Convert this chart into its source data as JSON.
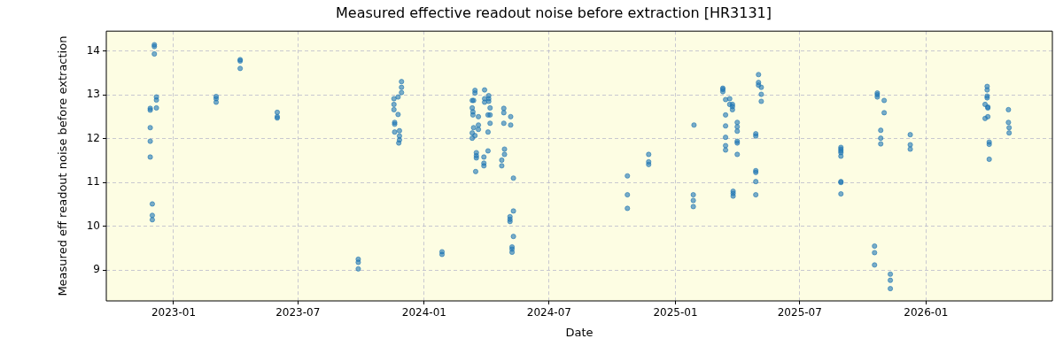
{
  "chart_data": {
    "type": "scatter",
    "title": "Measured effective readout noise before extraction [HR3131]",
    "xlabel": "Date",
    "ylabel": "Measured eff readout noise before extraction",
    "series": [
      {
        "color": "#1f77b4",
        "x": [
          "2022-11-28",
          "2022-11-28",
          "2022-11-28",
          "2022-11-28",
          "2022-11-28",
          "2022-12-01",
          "2022-12-01",
          "2022-12-01",
          "2022-12-04",
          "2022-12-04",
          "2022-12-04",
          "2022-12-07",
          "2022-12-07",
          "2022-12-07",
          "2023-03-04",
          "2023-03-04",
          "2023-03-04",
          "2023-04-08",
          "2023-04-08",
          "2023-04-08",
          "2023-06-01",
          "2023-06-01",
          "2023-06-01",
          "2023-09-27",
          "2023-09-27",
          "2023-09-27",
          "2023-11-18",
          "2023-11-18",
          "2023-11-18",
          "2023-11-19",
          "2023-11-19",
          "2023-11-19",
          "2023-11-24",
          "2023-11-24",
          "2023-11-26",
          "2023-11-26",
          "2023-11-26",
          "2023-11-25",
          "2023-11-29",
          "2023-11-29",
          "2023-11-29",
          "2024-01-27",
          "2024-01-27",
          "2024-03-11",
          "2024-03-11",
          "2024-03-11",
          "2024-03-11",
          "2024-03-12",
          "2024-03-12",
          "2024-03-13",
          "2024-03-13",
          "2024-03-15",
          "2024-03-15",
          "2024-03-15",
          "2024-03-17",
          "2024-03-17",
          "2024-03-17",
          "2024-03-16",
          "2024-03-20",
          "2024-03-20",
          "2024-03-20",
          "2024-03-28",
          "2024-03-28",
          "2024-03-28",
          "2024-03-29",
          "2024-03-29",
          "2024-03-29",
          "2024-04-03",
          "2024-04-03",
          "2024-04-03",
          "2024-04-04",
          "2024-04-04",
          "2024-04-04",
          "2024-04-06",
          "2024-04-06",
          "2024-04-06",
          "2024-04-26",
          "2024-04-26",
          "2024-04-26",
          "2024-04-27",
          "2024-04-27",
          "2024-04-23",
          "2024-04-23",
          "2024-05-05",
          "2024-05-05",
          "2024-05-05",
          "2024-05-06",
          "2024-05-06",
          "2024-05-08",
          "2024-05-08",
          "2024-05-08",
          "2024-05-10",
          "2024-05-10",
          "2024-05-10",
          "2024-10-23",
          "2024-10-23",
          "2024-10-23",
          "2024-11-23",
          "2024-11-23",
          "2024-11-23",
          "2025-01-27",
          "2025-01-27",
          "2025-01-27",
          "2025-01-28",
          "2025-03-11",
          "2025-03-11",
          "2025-03-11",
          "2025-03-15",
          "2025-03-15",
          "2025-03-15",
          "2025-03-15",
          "2025-03-15",
          "2025-03-15",
          "2025-03-21",
          "2025-03-21",
          "2025-03-25",
          "2025-03-25",
          "2025-03-25",
          "2025-03-26",
          "2025-03-26",
          "2025-03-26",
          "2025-04-01",
          "2025-04-01",
          "2025-04-01",
          "2025-04-01",
          "2025-04-01",
          "2025-04-01",
          "2025-04-28",
          "2025-04-28",
          "2025-04-28",
          "2025-04-28",
          "2025-04-28",
          "2025-04-28",
          "2025-05-02",
          "2025-05-02",
          "2025-05-02",
          "2025-05-06",
          "2025-05-06",
          "2025-05-06",
          "2025-08-30",
          "2025-08-30",
          "2025-08-30",
          "2025-08-30",
          "2025-08-30",
          "2025-08-30",
          "2025-08-30",
          "2025-08-30",
          "2025-10-18",
          "2025-10-18",
          "2025-10-18",
          "2025-10-22",
          "2025-10-22",
          "2025-10-22",
          "2025-10-27",
          "2025-10-27",
          "2025-10-27",
          "2025-11-01",
          "2025-11-01",
          "2025-11-10",
          "2025-11-10",
          "2025-11-10",
          "2025-12-09",
          "2025-12-09",
          "2025-12-09",
          "2026-03-28",
          "2026-03-28",
          "2026-03-31",
          "2026-03-31",
          "2026-03-31",
          "2026-03-31",
          "2026-04-01",
          "2026-04-01",
          "2026-04-01",
          "2026-04-03",
          "2026-04-03",
          "2026-04-03",
          "2026-05-01",
          "2026-05-01",
          "2026-05-02",
          "2026-05-02"
        ],
        "values": [
          12.69,
          12.65,
          12.25,
          11.94,
          11.58,
          10.51,
          10.25,
          10.15,
          14.14,
          14.1,
          13.93,
          12.95,
          12.88,
          12.7,
          12.96,
          12.91,
          12.83,
          13.8,
          13.77,
          13.6,
          12.6,
          12.5,
          12.47,
          9.25,
          9.18,
          9.03,
          12.91,
          12.78,
          12.66,
          12.37,
          12.33,
          12.15,
          12.95,
          12.55,
          12.18,
          12.06,
          11.97,
          11.9,
          13.3,
          13.17,
          13.05,
          9.42,
          9.36,
          12.87,
          12.7,
          12.13,
          12.01,
          12.61,
          12.54,
          12.25,
          12.87,
          13.1,
          13.04,
          12.07,
          11.68,
          11.61,
          11.56,
          11.25,
          12.5,
          12.31,
          12.21,
          11.58,
          11.44,
          11.38,
          13.11,
          12.91,
          12.83,
          12.15,
          11.72,
          12.54,
          12.98,
          12.91,
          12.85,
          12.7,
          12.54,
          12.35,
          12.69,
          12.59,
          12.35,
          11.76,
          11.64,
          11.51,
          11.38,
          10.22,
          10.16,
          10.11,
          12.5,
          12.31,
          9.53,
          9.48,
          9.41,
          11.1,
          10.35,
          9.77,
          11.15,
          10.72,
          10.41,
          11.64,
          11.47,
          11.41,
          10.72,
          10.59,
          10.45,
          12.31,
          13.15,
          13.12,
          13.07,
          12.89,
          12.54,
          12.29,
          12.03,
          11.84,
          11.74,
          12.91,
          12.78,
          12.78,
          12.73,
          12.66,
          10.8,
          10.75,
          10.69,
          12.37,
          12.27,
          12.17,
          11.94,
          11.9,
          11.64,
          12.11,
          12.06,
          11.27,
          11.23,
          11.02,
          10.72,
          13.46,
          13.28,
          13.22,
          13.17,
          13.01,
          12.85,
          11.8,
          11.76,
          11.72,
          11.68,
          11.6,
          11.02,
          11.0,
          10.74,
          9.55,
          9.4,
          9.12,
          13.04,
          13.0,
          12.95,
          12.19,
          12.01,
          11.88,
          12.87,
          12.59,
          8.91,
          8.77,
          8.58,
          12.09,
          11.86,
          11.76,
          12.78,
          12.46,
          13.19,
          13.11,
          12.97,
          12.93,
          12.72,
          12.7,
          12.5,
          11.92,
          11.87,
          11.53,
          12.66,
          12.37,
          12.25,
          12.13
        ]
      }
    ],
    "xlim": [
      "2022-09-25",
      "2026-07-04"
    ],
    "xticks": [
      "2023-01",
      "2023-07",
      "2024-01",
      "2024-07",
      "2025-01",
      "2025-07",
      "2026-01"
    ],
    "ylim": [
      8.3,
      14.45
    ],
    "yticks": [
      9,
      10,
      11,
      12,
      13,
      14
    ],
    "grid": true,
    "legend": false,
    "marker": "circle"
  }
}
